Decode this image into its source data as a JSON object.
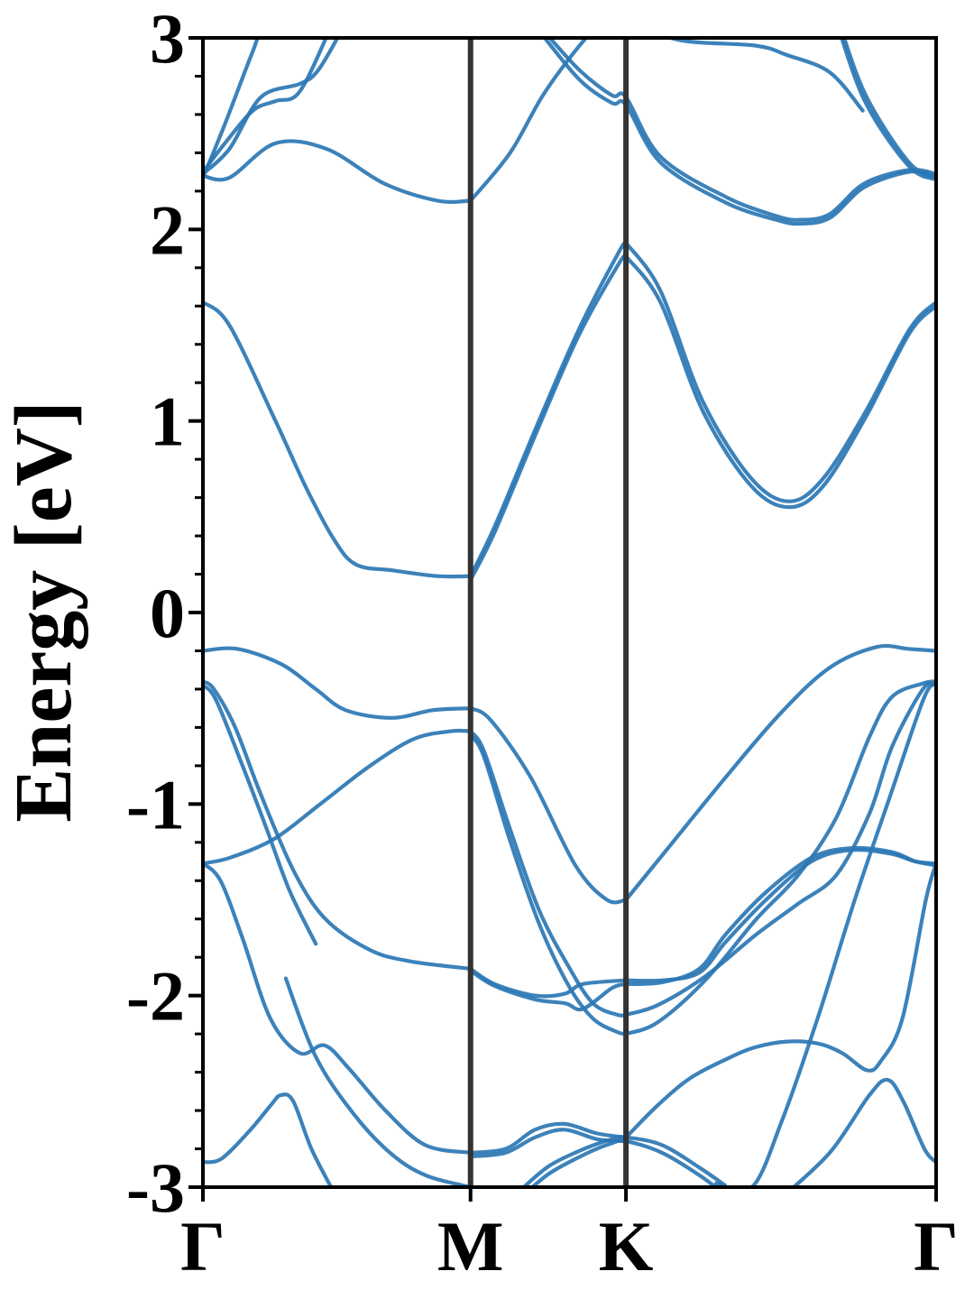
{
  "chart_data": {
    "type": "line",
    "title": "",
    "xlabel": "",
    "ylabel": "Energy [eV]",
    "ylim": [
      -3,
      3
    ],
    "xlim": [
      0,
      1
    ],
    "yticks": [
      -3,
      -2,
      -1,
      0,
      1,
      2,
      3
    ],
    "ytick_labels": [
      "-3",
      "-2",
      "-1",
      "0",
      "1",
      "2",
      "3"
    ],
    "k_points": [
      {
        "label": "Γ",
        "x": 0.0
      },
      {
        "label": "M",
        "x": 0.365
      },
      {
        "label": "K",
        "x": 0.577
      },
      {
        "label": "Γ",
        "x": 1.0
      }
    ],
    "grid": false,
    "legend": "none",
    "colors": {
      "band": "#2b77b4",
      "divider": "#333333",
      "axis": "#000000"
    },
    "bands": [
      {
        "x": [
          0.0,
          0.036,
          0.099,
          0.141,
          0.179,
          0.209,
          0.259,
          0.32,
          0.365
        ],
        "y": [
          1.62,
          1.5,
          1.0,
          0.65,
          0.38,
          0.25,
          0.22,
          0.19,
          0.19
        ]
      },
      {
        "x": [
          0.365,
          0.398,
          0.456,
          0.513,
          0.567,
          0.577
        ],
        "y": [
          0.19,
          0.45,
          0.98,
          1.48,
          1.88,
          1.93
        ]
      },
      {
        "x": [
          0.365,
          0.398,
          0.456,
          0.513,
          0.567,
          0.577
        ],
        "y": [
          0.17,
          0.42,
          0.95,
          1.45,
          1.82,
          1.86
        ]
      },
      {
        "x": [
          0.577,
          0.624,
          0.682,
          0.748,
          0.8,
          0.846,
          0.904,
          0.964,
          1.0
        ],
        "y": [
          1.93,
          1.68,
          1.1,
          0.7,
          0.58,
          0.7,
          1.05,
          1.48,
          1.62
        ]
      },
      {
        "x": [
          0.577,
          0.624,
          0.682,
          0.748,
          0.8,
          0.846,
          0.904,
          0.964,
          1.0
        ],
        "y": [
          1.86,
          1.62,
          1.05,
          0.66,
          0.55,
          0.66,
          1.02,
          1.46,
          1.6
        ]
      },
      {
        "x": [
          0.0,
          0.036,
          0.099,
          0.169,
          0.247,
          0.32,
          0.365
        ],
        "y": [
          2.28,
          2.27,
          2.45,
          2.42,
          2.24,
          2.15,
          2.15
        ]
      },
      {
        "x": [
          0.365,
          0.419,
          0.467,
          0.527,
          0.577
        ],
        "y": [
          2.15,
          2.4,
          2.72,
          3.02,
          3.2
        ]
      },
      {
        "x": [
          0.0,
          0.03,
          0.068,
          0.099,
          0.132,
          0.175
        ],
        "y": [
          2.3,
          2.45,
          2.62,
          2.67,
          2.72,
          3.06
        ]
      },
      {
        "x": [
          0.0,
          0.036,
          0.079,
          0.132,
          0.157,
          0.188
        ],
        "y": [
          2.29,
          2.42,
          2.69,
          2.76,
          2.83,
          3.03
        ]
      },
      {
        "x": [
          0.0,
          0.03,
          0.068,
          0.088,
          0.124,
          0.152,
          0.175
        ],
        "y": [
          2.27,
          2.55,
          2.93,
          3.1,
          3.06,
          3.0,
          3.08
        ]
      },
      {
        "x": [
          0.464,
          0.514,
          0.558,
          0.577,
          0.624,
          0.713,
          0.782,
          0.814,
          0.855,
          0.902,
          0.963,
          1.0
        ],
        "y": [
          3.01,
          2.78,
          2.66,
          2.65,
          2.35,
          2.14,
          2.05,
          2.03,
          2.06,
          2.22,
          2.3,
          2.28
        ]
      },
      {
        "x": [
          0.464,
          0.514,
          0.558,
          0.577,
          0.624,
          0.713,
          0.782,
          0.814,
          0.855,
          0.902,
          0.963,
          1.0
        ],
        "y": [
          3.04,
          2.83,
          2.7,
          2.69,
          2.38,
          2.17,
          2.07,
          2.05,
          2.08,
          2.24,
          2.31,
          2.29
        ]
      },
      {
        "x": [
          0.577,
          0.648,
          0.753,
          0.797,
          0.855,
          0.9
        ],
        "y": [
          3.1,
          2.99,
          2.96,
          2.91,
          2.82,
          2.62
        ]
      },
      {
        "x": [
          0.866,
          0.904,
          0.963,
          1.0
        ],
        "y": [
          3.1,
          2.7,
          2.35,
          2.27
        ]
      },
      {
        "x": [
          0.866,
          0.904,
          0.963,
          1.0
        ],
        "y": [
          3.06,
          2.66,
          2.33,
          2.26
        ]
      },
      {
        "x": [
          0.0,
          0.047,
          0.107,
          0.154,
          0.195,
          0.258,
          0.313,
          0.365
        ],
        "y": [
          -0.2,
          -0.19,
          -0.27,
          -0.4,
          -0.51,
          -0.55,
          -0.51,
          -0.5
        ]
      },
      {
        "x": [
          0.365,
          0.392,
          0.447,
          0.508,
          0.551,
          0.577
        ],
        "y": [
          -0.5,
          -0.56,
          -0.86,
          -1.32,
          -1.5,
          -1.5
        ]
      },
      {
        "x": [
          0.577,
          0.628,
          0.713,
          0.787,
          0.854,
          0.919,
          0.962,
          1.0
        ],
        "y": [
          -1.5,
          -1.26,
          -0.86,
          -0.53,
          -0.29,
          -0.18,
          -0.19,
          -0.2
        ]
      },
      {
        "x": [
          0.0,
          0.015,
          0.044,
          0.079,
          0.124,
          0.167,
          0.227,
          0.281,
          0.365
        ],
        "y": [
          -0.36,
          -0.4,
          -0.6,
          -0.95,
          -1.35,
          -1.6,
          -1.76,
          -1.82,
          -1.86
        ]
      },
      {
        "x": [
          0.0,
          0.017,
          0.049,
          0.086,
          0.118,
          0.154
        ],
        "y": [
          -0.38,
          -0.45,
          -0.75,
          -1.12,
          -1.45,
          -1.73
        ]
      },
      {
        "x": [
          0.0,
          0.037,
          0.098,
          0.16,
          0.228,
          0.288,
          0.338,
          0.365
        ],
        "y": [
          -1.31,
          -1.28,
          -1.18,
          -1.0,
          -0.8,
          -0.66,
          -0.62,
          -0.62
        ]
      },
      {
        "x": [
          0.365,
          0.383,
          0.418,
          0.458,
          0.499,
          0.532,
          0.565,
          0.577
        ],
        "y": [
          -0.62,
          -0.72,
          -1.12,
          -1.55,
          -1.85,
          -2.04,
          -2.1,
          -2.1
        ]
      },
      {
        "x": [
          0.365,
          0.383,
          0.418,
          0.458,
          0.499,
          0.532,
          0.565,
          0.577
        ],
        "y": [
          -0.64,
          -0.75,
          -1.18,
          -1.62,
          -1.95,
          -2.12,
          -2.19,
          -2.2
        ]
      },
      {
        "x": [
          0.577,
          0.62,
          0.685,
          0.755,
          0.812,
          0.864,
          0.909,
          0.94,
          0.982,
          1.0
        ],
        "y": [
          -2.1,
          -2.05,
          -1.9,
          -1.68,
          -1.52,
          -1.37,
          -1.05,
          -0.7,
          -0.4,
          -0.38
        ]
      },
      {
        "x": [
          0.577,
          0.62,
          0.685,
          0.755,
          0.812,
          0.864,
          0.909,
          0.94,
          0.982,
          1.0
        ],
        "y": [
          -2.2,
          -2.14,
          -1.92,
          -1.6,
          -1.37,
          -1.07,
          -0.65,
          -0.44,
          -0.37,
          -0.36
        ]
      },
      {
        "x": [
          0.365,
          0.398,
          0.453,
          0.494,
          0.518,
          0.577
        ],
        "y": [
          -1.86,
          -1.94,
          -2.0,
          -1.99,
          -1.94,
          -1.92
        ]
      },
      {
        "x": [
          0.365,
          0.398,
          0.453,
          0.494,
          0.518,
          0.558,
          0.577
        ],
        "y": [
          -1.87,
          -1.95,
          -2.02,
          -2.04,
          -2.07,
          -1.96,
          -1.94
        ]
      },
      {
        "x": [
          0.577,
          0.627,
          0.677,
          0.713,
          0.768,
          0.83,
          0.884,
          0.939,
          0.972,
          1.0
        ],
        "y": [
          -1.92,
          -1.92,
          -1.88,
          -1.72,
          -1.5,
          -1.3,
          -1.24,
          -1.26,
          -1.3,
          -1.31
        ]
      },
      {
        "x": [
          0.577,
          0.627,
          0.677,
          0.713,
          0.768,
          0.83,
          0.884,
          0.939,
          0.972,
          1.0
        ],
        "y": [
          -1.94,
          -1.93,
          -1.86,
          -1.68,
          -1.46,
          -1.28,
          -1.23,
          -1.25,
          -1.3,
          -1.32
        ]
      },
      {
        "x": [
          0.0,
          0.024,
          0.054,
          0.092,
          0.132,
          0.166,
          0.199,
          0.249,
          0.303,
          0.365
        ],
        "y": [
          -1.31,
          -1.4,
          -1.7,
          -2.12,
          -2.3,
          -2.26,
          -2.38,
          -2.6,
          -2.78,
          -2.82
        ]
      },
      {
        "x": [
          0.113,
          0.154,
          0.206,
          0.258,
          0.305,
          0.365
        ],
        "y": [
          -1.91,
          -2.32,
          -2.62,
          -2.83,
          -2.94,
          -3.0
        ]
      },
      {
        "x": [
          0.365,
          0.413,
          0.453,
          0.493,
          0.538,
          0.577
        ],
        "y": [
          -2.82,
          -2.8,
          -2.7,
          -2.67,
          -2.72,
          -2.74
        ]
      },
      {
        "x": [
          0.365,
          0.413,
          0.453,
          0.493,
          0.538,
          0.577
        ],
        "y": [
          -2.84,
          -2.82,
          -2.74,
          -2.7,
          -2.75,
          -2.76
        ]
      },
      {
        "x": [
          0.432,
          0.472,
          0.52,
          0.558,
          0.577,
          0.626,
          0.678,
          0.712
        ],
        "y": [
          -3.02,
          -2.89,
          -2.8,
          -2.75,
          -2.74,
          -2.78,
          -2.9,
          -2.99
        ]
      },
      {
        "x": [
          0.432,
          0.472,
          0.52,
          0.558,
          0.577,
          0.626,
          0.678,
          0.712
        ],
        "y": [
          -3.06,
          -2.93,
          -2.83,
          -2.77,
          -2.76,
          -2.82,
          -2.94,
          -3.04
        ]
      },
      {
        "x": [
          0.577,
          0.621,
          0.665,
          0.715,
          0.753,
          0.797,
          0.839,
          0.872,
          0.906,
          0.925,
          0.954,
          0.986,
          1.0
        ],
        "y": [
          -2.74,
          -2.57,
          -2.43,
          -2.33,
          -2.27,
          -2.24,
          -2.25,
          -2.3,
          -2.39,
          -2.34,
          -2.12,
          -1.5,
          -1.31
        ]
      },
      {
        "x": [
          0.0,
          0.026,
          0.065,
          0.093,
          0.106,
          0.123,
          0.148,
          0.179
        ],
        "y": [
          -2.87,
          -2.85,
          -2.7,
          -2.57,
          -2.52,
          -2.55,
          -2.8,
          -3.03
        ]
      },
      {
        "x": [
          0.788,
          0.855,
          0.909,
          0.934,
          0.955,
          0.984,
          1.0
        ],
        "y": [
          -3.06,
          -2.82,
          -2.52,
          -2.44,
          -2.55,
          -2.8,
          -2.87
        ]
      },
      {
        "x": [
          0.7,
          0.749,
          0.79,
          0.84,
          0.889,
          0.938,
          0.983,
          1.0
        ],
        "y": [
          -2.98,
          -3.0,
          -2.65,
          -2.1,
          -1.5,
          -0.95,
          -0.45,
          -0.37
        ]
      }
    ]
  }
}
